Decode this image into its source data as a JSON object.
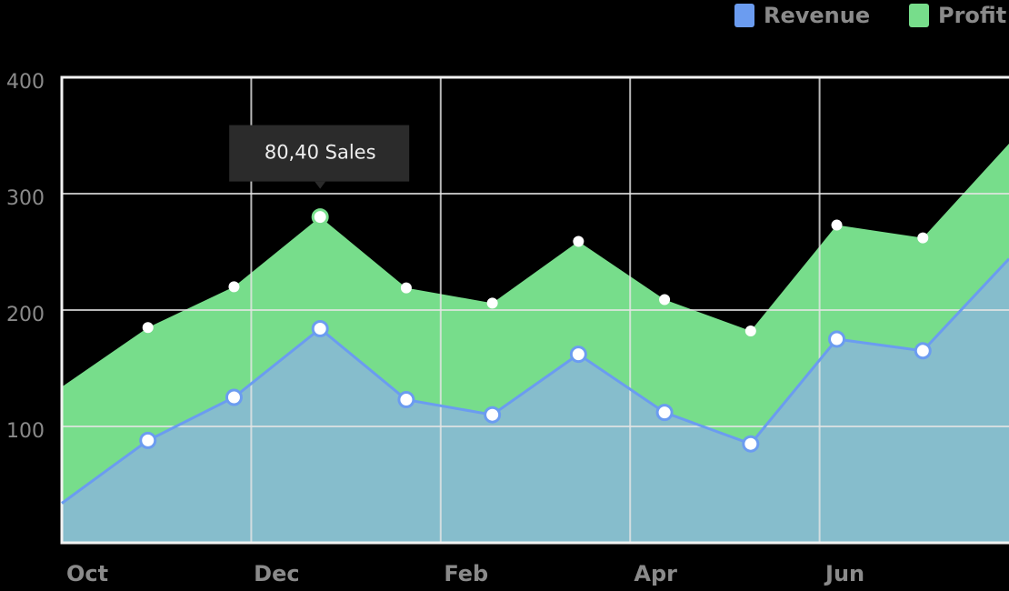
{
  "chart_data": {
    "type": "stacked-area",
    "annotation": "80,40 Sales",
    "x": [
      0,
      1,
      2,
      3,
      4,
      5,
      6,
      7,
      8,
      9,
      10,
      11
    ],
    "xlim": [
      0,
      11
    ],
    "xticks": [
      {
        "value": 0,
        "label": "Oct"
      },
      {
        "value": 2.2,
        "label": "Dec"
      },
      {
        "value": 4.4,
        "label": "Feb"
      },
      {
        "value": 6.6,
        "label": "Apr"
      },
      {
        "value": 8.8,
        "label": "Jun"
      }
    ],
    "ylim": [
      0,
      400
    ],
    "yticks": [
      100,
      200,
      300,
      400
    ],
    "grid": true,
    "legend": "top-right",
    "series": [
      {
        "name": "Revenue",
        "color": "#6b9cf0",
        "values": [
          34,
          88,
          125,
          184,
          123,
          110,
          162,
          112,
          85,
          175,
          165,
          244
        ]
      },
      {
        "name": "Profit",
        "color": "#77dd8b",
        "values": [
          100,
          97,
          95,
          96,
          96,
          96,
          97,
          97,
          97,
          98,
          97,
          99
        ]
      }
    ]
  }
}
